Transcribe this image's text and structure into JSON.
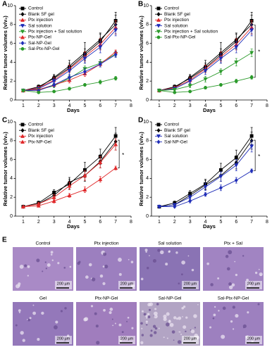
{
  "chart_data": [
    {
      "type": "line",
      "title": "A",
      "x_label": "Days",
      "y_label": "Relative tumor volumes (v/v₀)",
      "x": [
        1,
        2,
        3,
        4,
        5,
        6,
        7
      ],
      "xlim": [
        0.5,
        8
      ],
      "xticks": [
        1,
        2,
        3,
        4,
        5,
        6,
        7,
        8
      ],
      "ylim": [
        0,
        10
      ],
      "yticks": [
        0,
        2,
        4,
        6,
        8,
        10
      ],
      "legend": "upper-left",
      "series": [
        {
          "name": "Control",
          "color": "#000000",
          "marker": "square",
          "values": [
            1,
            1.4,
            2.3,
            3.4,
            4.8,
            6.2,
            8.4
          ],
          "errors": [
            0.05,
            0.2,
            0.3,
            0.5,
            0.6,
            0.8,
            0.9
          ]
        },
        {
          "name": "Blank SF gel",
          "color": "#000000",
          "marker": "diamond",
          "values": [
            1,
            1.3,
            2.4,
            3.6,
            5.0,
            6.4,
            8.0
          ],
          "errors": [
            0.05,
            0.2,
            0.3,
            0.6,
            1.1,
            0.7,
            1.0
          ]
        },
        {
          "name": "Ptx injection",
          "color": "#e0282a",
          "marker": "triangle",
          "values": [
            1,
            1.3,
            2.1,
            3.3,
            4.6,
            5.9,
            7.7
          ],
          "errors": [
            0.05,
            0.15,
            0.3,
            0.4,
            0.5,
            0.6,
            0.7
          ]
        },
        {
          "name": "Sal solution",
          "color": "#1f2db8",
          "marker": "triangle-down",
          "values": [
            1,
            1.2,
            2.0,
            3.1,
            4.4,
            5.6,
            7.4
          ],
          "errors": [
            0.05,
            0.15,
            0.25,
            0.4,
            0.5,
            0.6,
            0.6
          ]
        },
        {
          "name": "Ptx injection + Sal solution",
          "color": "#2a9a2a",
          "marker": "triangle-down",
          "values": [
            1,
            1.1,
            1.5,
            2.3,
            3.3,
            3.9,
            4.9
          ],
          "errors": [
            0.05,
            0.1,
            0.2,
            0.3,
            0.3,
            0.4,
            0.3
          ]
        },
        {
          "name": "Ptx-NP-Gel",
          "color": "#e0282a",
          "marker": "triangle",
          "values": [
            1,
            1.1,
            1.6,
            2.1,
            2.8,
            3.8,
            5.1
          ],
          "errors": [
            0.05,
            0.1,
            0.2,
            0.3,
            0.3,
            0.3,
            0.2
          ]
        },
        {
          "name": "Sal-NP-Gel",
          "color": "#1f2db8",
          "marker": "diamond",
          "values": [
            1,
            1.0,
            1.6,
            2.4,
            3.0,
            3.8,
            4.8
          ],
          "errors": [
            0.05,
            0.1,
            0.2,
            0.3,
            0.3,
            0.3,
            0.3
          ]
        },
        {
          "name": "Sal-Ptx-NP-Gel",
          "color": "#2a9a2a",
          "marker": "circle",
          "values": [
            1,
            0.8,
            0.9,
            1.2,
            1.6,
            1.9,
            2.3
          ],
          "errors": [
            0.05,
            0.1,
            0.1,
            0.15,
            0.15,
            0.2,
            0.2
          ]
        }
      ]
    },
    {
      "type": "line",
      "title": "B",
      "x_label": "Days",
      "y_label": "Relative tumor volumes (v/v₀)",
      "x": [
        1,
        2,
        3,
        4,
        5,
        6,
        7
      ],
      "xlim": [
        0.5,
        8
      ],
      "xticks": [
        1,
        2,
        3,
        4,
        5,
        6,
        7,
        8
      ],
      "ylim": [
        0,
        10
      ],
      "yticks": [
        0,
        2,
        4,
        6,
        8,
        10
      ],
      "legend": "upper-left",
      "annotations": [
        "*"
      ],
      "series": [
        {
          "name": "Control",
          "color": "#000000",
          "marker": "square",
          "values": [
            1,
            1.4,
            2.3,
            3.4,
            4.8,
            6.2,
            8.4
          ],
          "errors": [
            0.05,
            0.2,
            0.3,
            0.5,
            0.6,
            0.8,
            0.9
          ]
        },
        {
          "name": "Blank SF gel",
          "color": "#000000",
          "marker": "diamond",
          "values": [
            1,
            1.3,
            2.4,
            3.6,
            5.0,
            6.4,
            8.0
          ],
          "errors": [
            0.05,
            0.2,
            0.3,
            0.6,
            1.1,
            0.7,
            1.0
          ]
        },
        {
          "name": "Ptx injection",
          "color": "#e0282a",
          "marker": "triangle",
          "values": [
            1,
            1.3,
            2.1,
            3.3,
            4.6,
            5.9,
            7.7
          ],
          "errors": [
            0.05,
            0.15,
            0.3,
            0.4,
            0.5,
            0.6,
            0.7
          ]
        },
        {
          "name": "Sal solution",
          "color": "#1f2db8",
          "marker": "triangle-down",
          "values": [
            1,
            1.2,
            2.0,
            3.1,
            4.4,
            5.6,
            7.4
          ],
          "errors": [
            0.05,
            0.15,
            0.25,
            0.4,
            0.5,
            0.6,
            0.6
          ]
        },
        {
          "name": "Ptx injection + Sal solution",
          "color": "#2a9a2a",
          "marker": "triangle-down",
          "values": [
            1,
            1.1,
            1.5,
            2.2,
            3.0,
            4.0,
            5.0
          ],
          "errors": [
            0.05,
            0.1,
            0.2,
            0.3,
            0.3,
            0.4,
            0.4
          ]
        },
        {
          "name": "Sal-Ptx-NP-Gel",
          "color": "#2a9a2a",
          "marker": "circle",
          "values": [
            1,
            0.8,
            0.9,
            1.3,
            1.6,
            2.0,
            2.4
          ],
          "errors": [
            0.05,
            0.1,
            0.1,
            0.15,
            0.15,
            0.2,
            0.2
          ]
        }
      ]
    },
    {
      "type": "line",
      "title": "C",
      "x_label": "Days",
      "y_label": "Relative tumor volumes (v/v₀)",
      "x": [
        1,
        2,
        3,
        4,
        5,
        6,
        7
      ],
      "xlim": [
        0.5,
        8
      ],
      "xticks": [
        1,
        2,
        3,
        4,
        5,
        6,
        7,
        8
      ],
      "ylim": [
        0,
        10
      ],
      "yticks": [
        0,
        2,
        4,
        6,
        8,
        10
      ],
      "legend": "upper-left",
      "annotations": [
        "*"
      ],
      "series": [
        {
          "name": "Control",
          "color": "#000000",
          "marker": "square",
          "values": [
            1,
            1.4,
            2.5,
            3.4,
            4.9,
            6.3,
            8.5
          ],
          "errors": [
            0.05,
            0.2,
            0.3,
            0.5,
            0.8,
            0.8,
            0.9
          ]
        },
        {
          "name": "Blank SF gel",
          "color": "#000000",
          "marker": "diamond",
          "values": [
            1,
            1.3,
            2.2,
            3.6,
            4.3,
            5.8,
            7.9
          ],
          "errors": [
            0.05,
            0.2,
            0.3,
            0.5,
            0.6,
            0.7,
            0.9
          ]
        },
        {
          "name": "Ptx injection",
          "color": "#e0282a",
          "marker": "triangle",
          "values": [
            1,
            1.3,
            2.0,
            3.2,
            4.3,
            5.7,
            7.6
          ],
          "errors": [
            0.05,
            0.15,
            0.3,
            0.4,
            0.5,
            0.6,
            0.6
          ]
        },
        {
          "name": "Ptx-NP-Gel",
          "color": "#e0282a",
          "marker": "triangle",
          "values": [
            1,
            1.1,
            1.6,
            2.2,
            2.8,
            3.9,
            5.1
          ],
          "errors": [
            0.05,
            0.1,
            0.2,
            0.2,
            0.3,
            0.3,
            0.2
          ]
        }
      ]
    },
    {
      "type": "line",
      "title": "D",
      "x_label": "Days",
      "y_label": "Relative tumor volumes (v/v₀)",
      "x": [
        1,
        2,
        3,
        4,
        5,
        6,
        7
      ],
      "xlim": [
        0.5,
        8
      ],
      "xticks": [
        1,
        2,
        3,
        4,
        5,
        6,
        7,
        8
      ],
      "ylim": [
        0,
        10
      ],
      "yticks": [
        0,
        2,
        4,
        6,
        8,
        10
      ],
      "legend": "upper-left",
      "annotations": [
        "*"
      ],
      "series": [
        {
          "name": "Control",
          "color": "#000000",
          "marker": "square",
          "values": [
            1,
            1.4,
            2.4,
            3.4,
            4.9,
            6.2,
            8.5
          ],
          "errors": [
            0.05,
            0.2,
            0.3,
            0.5,
            0.7,
            0.8,
            0.9
          ]
        },
        {
          "name": "Blank SF gel",
          "color": "#000000",
          "marker": "diamond",
          "values": [
            1,
            1.2,
            2.2,
            3.3,
            4.3,
            5.7,
            8.0
          ],
          "errors": [
            0.05,
            0.2,
            0.3,
            0.5,
            0.6,
            0.7,
            0.9
          ]
        },
        {
          "name": "Sal solution",
          "color": "#1f2db8",
          "marker": "triangle-down",
          "values": [
            1,
            1.2,
            2.0,
            3.1,
            4.2,
            5.4,
            7.4
          ],
          "errors": [
            0.05,
            0.15,
            0.25,
            0.4,
            0.5,
            0.6,
            0.6
          ]
        },
        {
          "name": "Sal-NP-Gel",
          "color": "#1f2db8",
          "marker": "diamond",
          "values": [
            1,
            1.0,
            1.6,
            2.3,
            3.0,
            3.8,
            4.8
          ],
          "errors": [
            0.05,
            0.1,
            0.2,
            0.2,
            0.3,
            0.3,
            0.2
          ]
        }
      ]
    }
  ],
  "panel_e": {
    "label": "E",
    "images": [
      {
        "title": "Control",
        "scale_bar": "200 µm"
      },
      {
        "title": "Ptx injection",
        "scale_bar": "200 µm"
      },
      {
        "title": "Sal solution",
        "scale_bar": "200 µm"
      },
      {
        "title": "Ptx + Sal",
        "scale_bar": "200 µm"
      },
      {
        "title": "Gel",
        "scale_bar": "200 µm"
      },
      {
        "title": "Ptx-NP-Gel",
        "scale_bar": "200 µm"
      },
      {
        "title": "Sal-NP-Gel",
        "scale_bar": "200 µm"
      },
      {
        "title": "Sal-Ptx-NP-Gel",
        "scale_bar": "200 µm"
      }
    ]
  }
}
